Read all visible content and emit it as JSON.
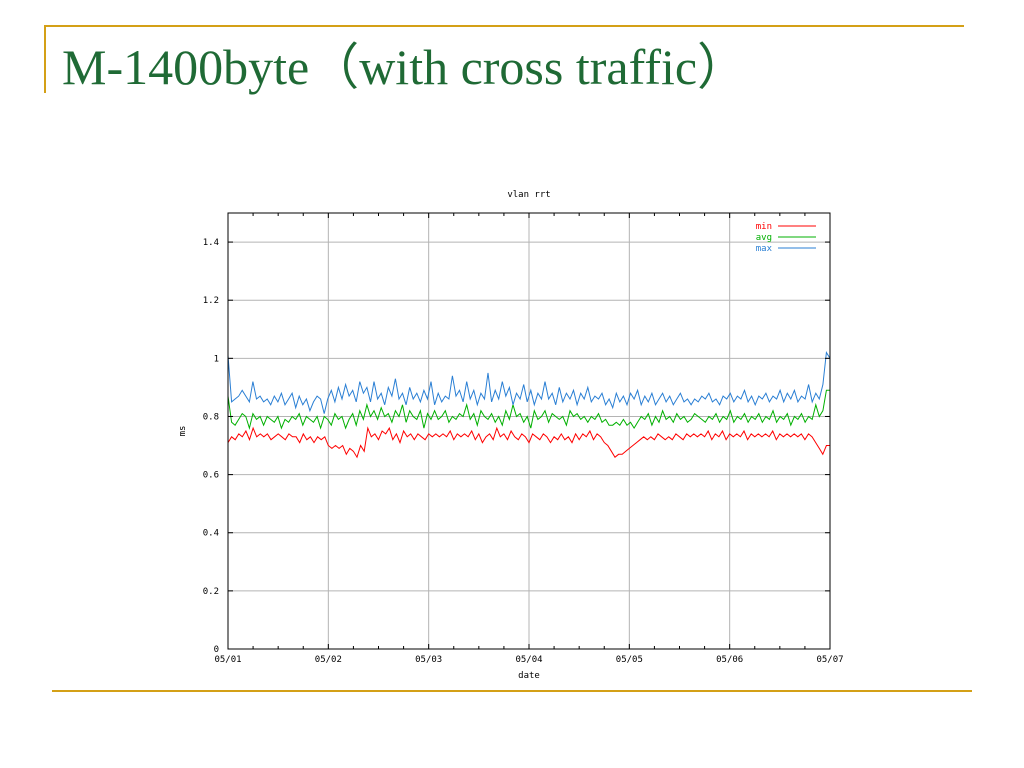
{
  "slide": {
    "title": "M-1400byte（with cross traffic）",
    "accent_color": "#d4a017",
    "title_color": "#1f6a35"
  },
  "chart_data": {
    "type": "line",
    "title": "vlan rrt",
    "xlabel": "date",
    "ylabel": "ms",
    "ylim": [
      0,
      1.5
    ],
    "xlim": [
      0,
      6
    ],
    "x_ticks": [
      "05/01",
      "05/02",
      "05/03",
      "05/04",
      "05/05",
      "05/06",
      "05/07"
    ],
    "y_ticks": [
      0,
      0.2,
      0.4,
      0.6,
      0.8,
      1,
      1.2,
      1.4
    ],
    "y_tick_labels": [
      "0",
      "0.2",
      "0.4",
      "0.6",
      "0.8",
      "1",
      "1.2",
      "1.4"
    ],
    "grid": true,
    "legend_position": "top-right",
    "series": [
      {
        "name": "min",
        "color": "#ff0000",
        "values": [
          0.71,
          0.73,
          0.72,
          0.74,
          0.73,
          0.75,
          0.72,
          0.76,
          0.73,
          0.74,
          0.73,
          0.74,
          0.72,
          0.73,
          0.74,
          0.73,
          0.72,
          0.74,
          0.73,
          0.73,
          0.71,
          0.74,
          0.72,
          0.73,
          0.71,
          0.73,
          0.72,
          0.73,
          0.7,
          0.69,
          0.7,
          0.69,
          0.7,
          0.67,
          0.69,
          0.68,
          0.66,
          0.7,
          0.68,
          0.76,
          0.73,
          0.74,
          0.72,
          0.75,
          0.74,
          0.76,
          0.72,
          0.74,
          0.71,
          0.75,
          0.73,
          0.74,
          0.72,
          0.74,
          0.73,
          0.72,
          0.74,
          0.73,
          0.74,
          0.73,
          0.74,
          0.73,
          0.75,
          0.72,
          0.74,
          0.73,
          0.74,
          0.73,
          0.75,
          0.72,
          0.74,
          0.71,
          0.73,
          0.74,
          0.72,
          0.76,
          0.73,
          0.74,
          0.72,
          0.75,
          0.73,
          0.72,
          0.74,
          0.73,
          0.71,
          0.74,
          0.73,
          0.72,
          0.74,
          0.73,
          0.71,
          0.73,
          0.72,
          0.74,
          0.72,
          0.73,
          0.71,
          0.74,
          0.72,
          0.74,
          0.73,
          0.75,
          0.72,
          0.74,
          0.73,
          0.71,
          0.7,
          0.68,
          0.66,
          0.67,
          0.67,
          0.68,
          0.69,
          0.7,
          0.71,
          0.72,
          0.73,
          0.72,
          0.73,
          0.72,
          0.74,
          0.73,
          0.72,
          0.73,
          0.72,
          0.74,
          0.73,
          0.72,
          0.74,
          0.73,
          0.74,
          0.73,
          0.74,
          0.73,
          0.75,
          0.72,
          0.74,
          0.73,
          0.75,
          0.72,
          0.74,
          0.73,
          0.74,
          0.73,
          0.75,
          0.72,
          0.74,
          0.73,
          0.74,
          0.73,
          0.74,
          0.73,
          0.75,
          0.72,
          0.74,
          0.73,
          0.74,
          0.73,
          0.74,
          0.73,
          0.74,
          0.72,
          0.74,
          0.73,
          0.71,
          0.69,
          0.67,
          0.7,
          0.7
        ]
      },
      {
        "name": "avg",
        "color": "#00b000",
        "values": [
          0.87,
          0.78,
          0.77,
          0.79,
          0.81,
          0.8,
          0.76,
          0.81,
          0.79,
          0.8,
          0.77,
          0.8,
          0.79,
          0.78,
          0.8,
          0.76,
          0.79,
          0.78,
          0.8,
          0.79,
          0.81,
          0.77,
          0.8,
          0.79,
          0.78,
          0.8,
          0.76,
          0.8,
          0.79,
          0.77,
          0.81,
          0.79,
          0.8,
          0.76,
          0.79,
          0.81,
          0.77,
          0.82,
          0.79,
          0.84,
          0.8,
          0.82,
          0.79,
          0.83,
          0.8,
          0.81,
          0.78,
          0.82,
          0.8,
          0.84,
          0.78,
          0.82,
          0.8,
          0.79,
          0.82,
          0.76,
          0.81,
          0.79,
          0.82,
          0.79,
          0.8,
          0.82,
          0.78,
          0.8,
          0.79,
          0.81,
          0.8,
          0.84,
          0.79,
          0.81,
          0.77,
          0.82,
          0.8,
          0.79,
          0.81,
          0.78,
          0.8,
          0.77,
          0.82,
          0.79,
          0.84,
          0.8,
          0.81,
          0.78,
          0.8,
          0.76,
          0.82,
          0.79,
          0.8,
          0.82,
          0.78,
          0.81,
          0.8,
          0.79,
          0.8,
          0.77,
          0.82,
          0.8,
          0.81,
          0.79,
          0.8,
          0.78,
          0.8,
          0.79,
          0.81,
          0.78,
          0.79,
          0.77,
          0.77,
          0.78,
          0.77,
          0.79,
          0.77,
          0.78,
          0.76,
          0.78,
          0.8,
          0.79,
          0.81,
          0.77,
          0.8,
          0.78,
          0.82,
          0.79,
          0.8,
          0.78,
          0.81,
          0.79,
          0.8,
          0.78,
          0.79,
          0.81,
          0.8,
          0.79,
          0.78,
          0.8,
          0.79,
          0.81,
          0.78,
          0.8,
          0.79,
          0.82,
          0.78,
          0.8,
          0.79,
          0.81,
          0.78,
          0.8,
          0.79,
          0.81,
          0.78,
          0.8,
          0.79,
          0.82,
          0.78,
          0.8,
          0.79,
          0.81,
          0.77,
          0.8,
          0.79,
          0.81,
          0.78,
          0.8,
          0.79,
          0.84,
          0.8,
          0.82,
          0.89,
          0.89
        ]
      },
      {
        "name": "max",
        "color": "#2a7fd4",
        "values": [
          1.01,
          0.85,
          0.86,
          0.87,
          0.89,
          0.87,
          0.85,
          0.92,
          0.86,
          0.87,
          0.85,
          0.86,
          0.84,
          0.87,
          0.85,
          0.88,
          0.84,
          0.86,
          0.88,
          0.83,
          0.87,
          0.84,
          0.86,
          0.82,
          0.85,
          0.87,
          0.86,
          0.81,
          0.86,
          0.89,
          0.85,
          0.9,
          0.86,
          0.91,
          0.87,
          0.89,
          0.85,
          0.92,
          0.88,
          0.9,
          0.85,
          0.92,
          0.86,
          0.88,
          0.84,
          0.9,
          0.87,
          0.93,
          0.86,
          0.88,
          0.84,
          0.9,
          0.86,
          0.88,
          0.85,
          0.89,
          0.86,
          0.92,
          0.84,
          0.88,
          0.85,
          0.87,
          0.86,
          0.94,
          0.87,
          0.89,
          0.85,
          0.92,
          0.86,
          0.89,
          0.84,
          0.88,
          0.86,
          0.95,
          0.85,
          0.89,
          0.86,
          0.92,
          0.87,
          0.9,
          0.84,
          0.88,
          0.86,
          0.91,
          0.85,
          0.89,
          0.84,
          0.88,
          0.86,
          0.92,
          0.86,
          0.88,
          0.84,
          0.9,
          0.85,
          0.88,
          0.86,
          0.89,
          0.84,
          0.88,
          0.86,
          0.9,
          0.85,
          0.87,
          0.86,
          0.88,
          0.84,
          0.86,
          0.83,
          0.88,
          0.85,
          0.87,
          0.84,
          0.88,
          0.86,
          0.89,
          0.84,
          0.87,
          0.85,
          0.88,
          0.84,
          0.86,
          0.88,
          0.85,
          0.87,
          0.84,
          0.86,
          0.88,
          0.85,
          0.86,
          0.84,
          0.86,
          0.85,
          0.87,
          0.86,
          0.88,
          0.85,
          0.86,
          0.84,
          0.87,
          0.86,
          0.88,
          0.85,
          0.87,
          0.86,
          0.89,
          0.85,
          0.87,
          0.84,
          0.87,
          0.86,
          0.88,
          0.85,
          0.87,
          0.86,
          0.89,
          0.85,
          0.88,
          0.86,
          0.89,
          0.85,
          0.87,
          0.86,
          0.91,
          0.85,
          0.88,
          0.86,
          0.91,
          1.02,
          1.0
        ]
      }
    ]
  }
}
